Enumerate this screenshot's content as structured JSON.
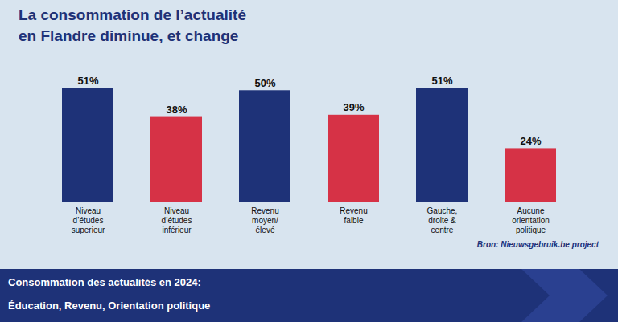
{
  "chart_data": {
    "type": "bar",
    "title": "La consommation de l’actualité\nen Flandre diminue, et change",
    "categories": [
      "Niveau\nd’études\nsuperieur",
      "Niveau\nd’études\ninférieur",
      "Revenu\nmoyen/\nélevé",
      "Revenu\nfaible",
      "Gauche,\ndroite &\ncentre",
      "Aucune\norientation\npolitique"
    ],
    "values": [
      51,
      38,
      50,
      39,
      51,
      24
    ],
    "value_labels": [
      "51%",
      "38%",
      "50%",
      "39%",
      "51%",
      "24%"
    ],
    "colors": [
      "#1e3278",
      "#d63246",
      "#1e3278",
      "#d63246",
      "#1e3278",
      "#d63246"
    ],
    "ylim": [
      0,
      62
    ],
    "grid": false,
    "data_labels": true,
    "tick_labels": "x",
    "source": "Bron: Nieuwsgebruik.be project",
    "footer": [
      "Consommation des actualités en 2024:",
      "Éducation, Revenu, Orientation politique"
    ]
  }
}
